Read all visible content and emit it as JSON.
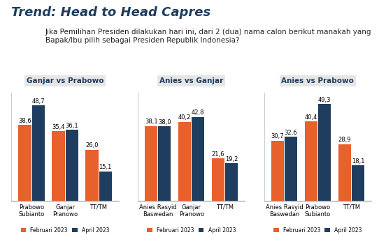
{
  "title": "Trend: Head to Head Capres",
  "subtitle": "Jika Pemilihan Presiden dilakukan hari ini, dari 2 (dua) nama calon berikut manakah yang Bapak/Ibu pilih sebagai Presiden Republik Indonesia?",
  "chart_data": [
    {
      "type": "bar",
      "title": "Ganjar vs Prabowo",
      "categories": [
        "Prabowo Subianto",
        "Ganjar Pranowo",
        "TT/TM"
      ],
      "series": [
        {
          "name": "Februari 2023",
          "color": "#e8602c",
          "values": [
            38.6,
            35.4,
            26.0
          ],
          "value_labels": [
            "38,6",
            "35,4",
            "26,0"
          ]
        },
        {
          "name": "April 2023",
          "color": "#1f3d5e",
          "values": [
            48.7,
            36.1,
            15.1
          ],
          "value_labels": [
            "48,7",
            "36,1",
            "15,1"
          ]
        }
      ],
      "ylim": [
        0,
        55
      ],
      "yticks": [],
      "tick_labels": "x",
      "data_labels": true,
      "legend": "bottom"
    },
    {
      "type": "bar",
      "title": "Anies vs Ganjar",
      "categories": [
        "Anies Rasyid Baswedan",
        "Ganjar Pranowo",
        "TT/TM"
      ],
      "series": [
        {
          "name": "Februari 2023",
          "color": "#e8602c",
          "values": [
            38.1,
            40.2,
            21.6
          ],
          "value_labels": [
            "38,1",
            "40,2",
            "21,6"
          ]
        },
        {
          "name": "April 2023",
          "color": "#1f3d5e",
          "values": [
            38.0,
            42.8,
            19.2
          ],
          "value_labels": [
            "38,0",
            "42,8",
            "19,2"
          ]
        }
      ],
      "ylim": [
        0,
        55
      ],
      "yticks": [],
      "tick_labels": "x",
      "data_labels": true,
      "legend": "bottom"
    },
    {
      "type": "bar",
      "title": "Anies vs Prabowo",
      "categories": [
        "Anies Rasyid Baswedan",
        "Prabowo Subianto",
        "TT/TM"
      ],
      "series": [
        {
          "name": "Februari 2023",
          "color": "#e8602c",
          "values": [
            30.7,
            40.4,
            28.9
          ],
          "value_labels": [
            "30,7",
            "40,4",
            "28,9"
          ]
        },
        {
          "name": "April 2023",
          "color": "#1f3d5e",
          "values": [
            32.6,
            49.3,
            18.1
          ],
          "value_labels": [
            "32,6",
            "49,3",
            "18,1"
          ]
        }
      ],
      "ylim": [
        0,
        55
      ],
      "yticks": [],
      "tick_labels": "x",
      "data_labels": true,
      "legend": "bottom"
    }
  ]
}
